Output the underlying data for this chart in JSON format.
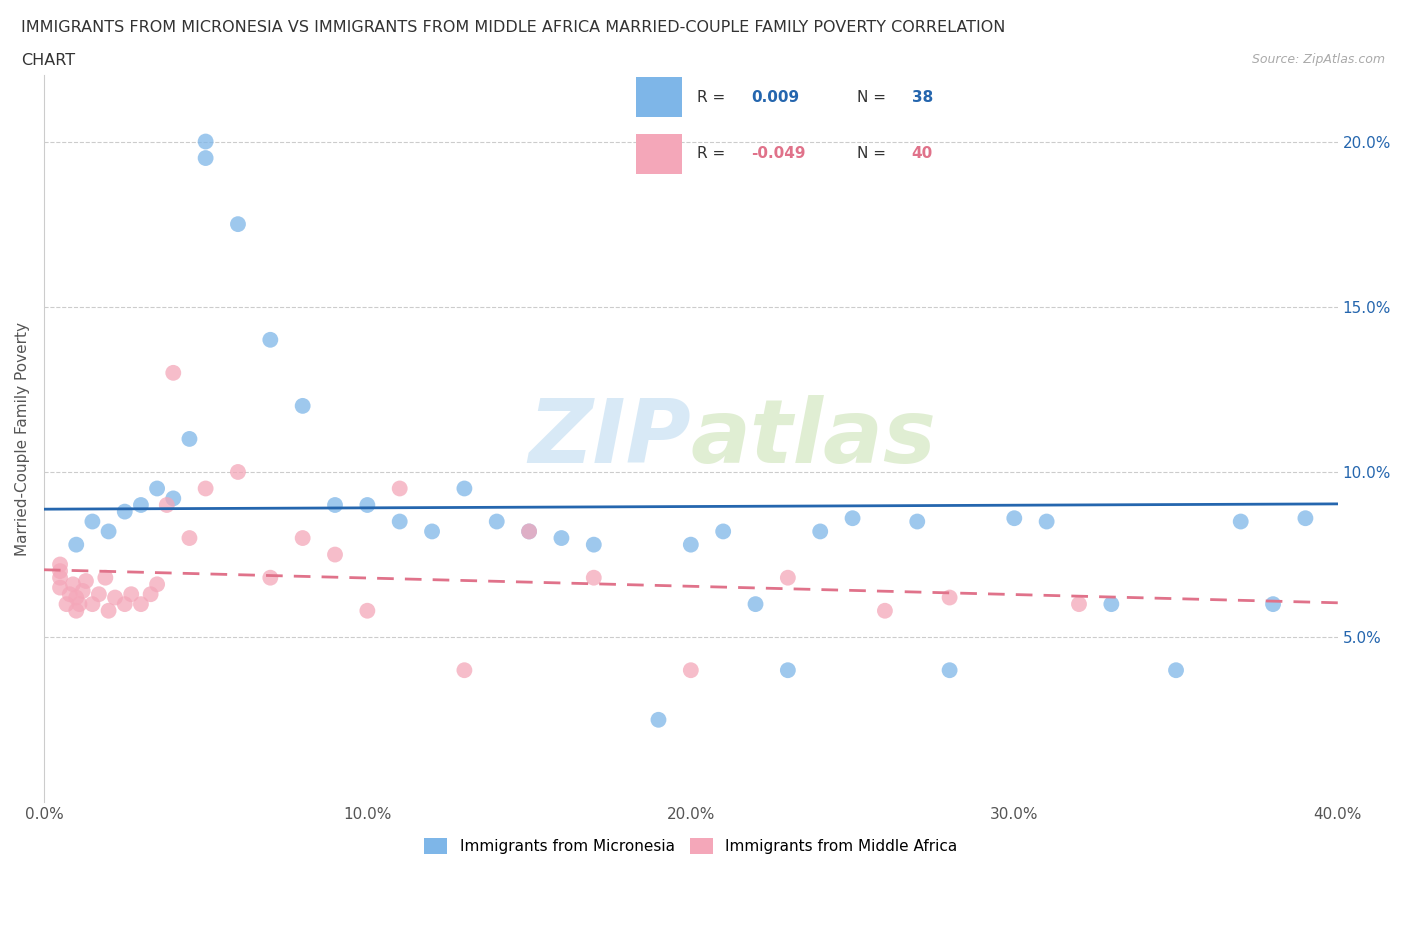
{
  "title_line1": "IMMIGRANTS FROM MICRONESIA VS IMMIGRANTS FROM MIDDLE AFRICA MARRIED-COUPLE FAMILY POVERTY CORRELATION",
  "title_line2": "CHART",
  "source": "Source: ZipAtlas.com",
  "ylabel": "Married-Couple Family Poverty",
  "xlim": [
    0.0,
    0.4
  ],
  "ylim": [
    0.0,
    0.22
  ],
  "xticks": [
    0.0,
    0.1,
    0.2,
    0.3,
    0.4
  ],
  "yticks": [
    0.05,
    0.1,
    0.15,
    0.2
  ],
  "xtick_labels": [
    "0.0%",
    "10.0%",
    "20.0%",
    "30.0%",
    "40.0%"
  ],
  "ytick_labels": [
    "5.0%",
    "10.0%",
    "15.0%",
    "20.0%"
  ],
  "grid_color": "#cccccc",
  "watermark_zip": "ZIP",
  "watermark_atlas": "atlas",
  "blue_color": "#7EB6E8",
  "pink_color": "#F4A7B9",
  "blue_line_color": "#2566AE",
  "pink_line_color": "#E0728A",
  "R_blue": 0.009,
  "N_blue": 38,
  "R_pink": -0.049,
  "N_pink": 40,
  "legend_label_blue": "Immigrants from Micronesia",
  "legend_label_pink": "Immigrants from Middle Africa",
  "blue_x": [
    0.01,
    0.015,
    0.02,
    0.025,
    0.03,
    0.035,
    0.04,
    0.045,
    0.05,
    0.05,
    0.06,
    0.07,
    0.08,
    0.09,
    0.1,
    0.11,
    0.12,
    0.13,
    0.14,
    0.15,
    0.16,
    0.17,
    0.19,
    0.2,
    0.21,
    0.22,
    0.23,
    0.24,
    0.25,
    0.27,
    0.28,
    0.3,
    0.31,
    0.33,
    0.35,
    0.37,
    0.38,
    0.39
  ],
  "blue_y": [
    0.078,
    0.085,
    0.082,
    0.088,
    0.09,
    0.095,
    0.092,
    0.11,
    0.2,
    0.195,
    0.175,
    0.14,
    0.12,
    0.09,
    0.09,
    0.085,
    0.082,
    0.095,
    0.085,
    0.082,
    0.08,
    0.078,
    0.025,
    0.078,
    0.082,
    0.06,
    0.04,
    0.082,
    0.086,
    0.085,
    0.04,
    0.086,
    0.085,
    0.06,
    0.04,
    0.085,
    0.06,
    0.086
  ],
  "pink_x": [
    0.005,
    0.005,
    0.005,
    0.005,
    0.007,
    0.008,
    0.009,
    0.01,
    0.01,
    0.011,
    0.012,
    0.013,
    0.015,
    0.017,
    0.019,
    0.02,
    0.022,
    0.025,
    0.027,
    0.03,
    0.033,
    0.035,
    0.038,
    0.04,
    0.045,
    0.05,
    0.06,
    0.07,
    0.08,
    0.09,
    0.1,
    0.11,
    0.13,
    0.15,
    0.17,
    0.2,
    0.23,
    0.26,
    0.28,
    0.32
  ],
  "pink_y": [
    0.065,
    0.068,
    0.07,
    0.072,
    0.06,
    0.063,
    0.066,
    0.058,
    0.062,
    0.06,
    0.064,
    0.067,
    0.06,
    0.063,
    0.068,
    0.058,
    0.062,
    0.06,
    0.063,
    0.06,
    0.063,
    0.066,
    0.09,
    0.13,
    0.08,
    0.095,
    0.1,
    0.068,
    0.08,
    0.075,
    0.058,
    0.095,
    0.04,
    0.082,
    0.068,
    0.04,
    0.068,
    0.058,
    0.062,
    0.06
  ]
}
